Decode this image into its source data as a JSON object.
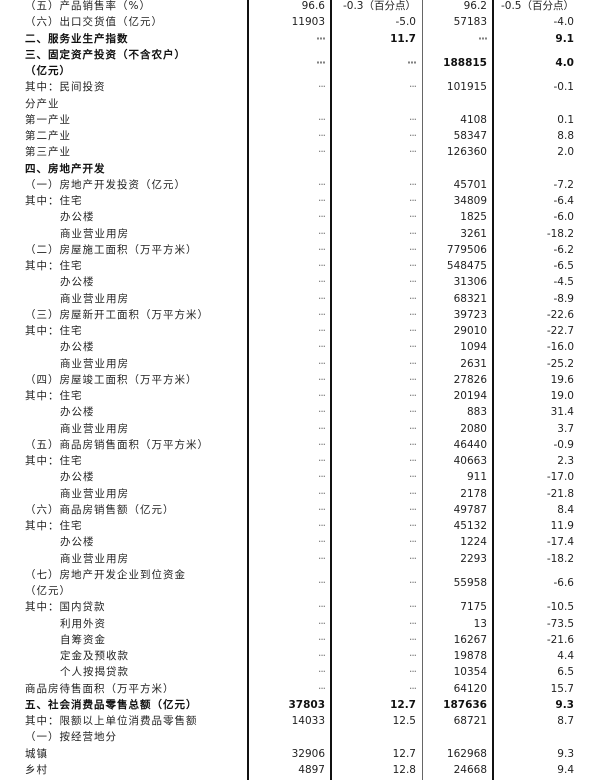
{
  "placeholder_dots": "···",
  "rows": [
    {
      "label": "（五）产品销售率（%）",
      "c1": "96.6",
      "c2": "-0.3（百分点）",
      "c3": "96.2",
      "c4": "-0.5（百分点）"
    },
    {
      "label": "（六）出口交货值（亿元）",
      "c1": "11903",
      "c2": "-5.0",
      "c3": "57183",
      "c4": "-4.0"
    },
    {
      "label": "二、服务业生产指数",
      "c1": "···",
      "c2": "11.7",
      "c3": "···",
      "c4": "9.1",
      "bold": true
    },
    {
      "label": "三、固定资产投资（不含农户）",
      "label2": "（亿元）",
      "c1": "···",
      "c2": "···",
      "c3": "188815",
      "c4": "4.0",
      "bold": true
    },
    {
      "label": "其中：民间投资",
      "c1": "···",
      "c2": "···",
      "c3": "101915",
      "c4": "-0.1"
    },
    {
      "label": "分产业",
      "c1": "",
      "c2": "",
      "c3": "",
      "c4": ""
    },
    {
      "label": "第一产业",
      "c1": "···",
      "c2": "···",
      "c3": "4108",
      "c4": "0.1"
    },
    {
      "label": "第二产业",
      "c1": "···",
      "c2": "···",
      "c3": "58347",
      "c4": "8.8"
    },
    {
      "label": "第三产业",
      "c1": "···",
      "c2": "···",
      "c3": "126360",
      "c4": "2.0"
    },
    {
      "label": "四、房地产开发",
      "c1": "",
      "c2": "",
      "c3": "",
      "c4": "",
      "bold": true
    },
    {
      "label": "（一）房地产开发投资（亿元）",
      "c1": "···",
      "c2": "···",
      "c3": "45701",
      "c4": "-7.2"
    },
    {
      "label": "其中：住宅",
      "c1": "···",
      "c2": "···",
      "c3": "34809",
      "c4": "-6.4"
    },
    {
      "label": "办公楼",
      "indent": true,
      "c1": "···",
      "c2": "···",
      "c3": "1825",
      "c4": "-6.0"
    },
    {
      "label": "商业营业用房",
      "indent": true,
      "c1": "···",
      "c2": "···",
      "c3": "3261",
      "c4": "-18.2"
    },
    {
      "label": "（二）房屋施工面积（万平方米）",
      "c1": "···",
      "c2": "···",
      "c3": "779506",
      "c4": "-6.2"
    },
    {
      "label": "其中：住宅",
      "c1": "···",
      "c2": "···",
      "c3": "548475",
      "c4": "-6.5"
    },
    {
      "label": "办公楼",
      "indent": true,
      "c1": "···",
      "c2": "···",
      "c3": "31306",
      "c4": "-4.5"
    },
    {
      "label": "商业营业用房",
      "indent": true,
      "c1": "···",
      "c2": "···",
      "c3": "68321",
      "c4": "-8.9"
    },
    {
      "label": "（三）房屋新开工面积（万平方米）",
      "c1": "···",
      "c2": "···",
      "c3": "39723",
      "c4": "-22.6"
    },
    {
      "label": "其中：住宅",
      "c1": "···",
      "c2": "···",
      "c3": "29010",
      "c4": "-22.7"
    },
    {
      "label": "办公楼",
      "indent": true,
      "c1": "···",
      "c2": "···",
      "c3": "1094",
      "c4": "-16.0"
    },
    {
      "label": "商业营业用房",
      "indent": true,
      "c1": "···",
      "c2": "···",
      "c3": "2631",
      "c4": "-25.2"
    },
    {
      "label": "（四）房屋竣工面积（万平方米）",
      "c1": "···",
      "c2": "···",
      "c3": "27826",
      "c4": "19.6"
    },
    {
      "label": "其中：住宅",
      "c1": "···",
      "c2": "···",
      "c3": "20194",
      "c4": "19.0"
    },
    {
      "label": "办公楼",
      "indent": true,
      "c1": "···",
      "c2": "···",
      "c3": "883",
      "c4": "31.4"
    },
    {
      "label": "商业营业用房",
      "indent": true,
      "c1": "···",
      "c2": "···",
      "c3": "2080",
      "c4": "3.7"
    },
    {
      "label": "（五）商品房销售面积（万平方米）",
      "c1": "···",
      "c2": "···",
      "c3": "46440",
      "c4": "-0.9"
    },
    {
      "label": "其中：住宅",
      "c1": "···",
      "c2": "···",
      "c3": "40663",
      "c4": "2.3"
    },
    {
      "label": "办公楼",
      "indent": true,
      "c1": "···",
      "c2": "···",
      "c3": "911",
      "c4": "-17.0"
    },
    {
      "label": "商业营业用房",
      "indent": true,
      "c1": "···",
      "c2": "···",
      "c3": "2178",
      "c4": "-21.8"
    },
    {
      "label": "（六）商品房销售额（亿元）",
      "c1": "···",
      "c2": "···",
      "c3": "49787",
      "c4": "8.4"
    },
    {
      "label": "其中：住宅",
      "c1": "···",
      "c2": "···",
      "c3": "45132",
      "c4": "11.9"
    },
    {
      "label": "办公楼",
      "indent": true,
      "c1": "···",
      "c2": "···",
      "c3": "1224",
      "c4": "-17.4"
    },
    {
      "label": "商业营业用房",
      "indent": true,
      "c1": "···",
      "c2": "···",
      "c3": "2293",
      "c4": "-18.2"
    },
    {
      "label": "（七）房地产开发企业到位资金",
      "label2": "（亿元）",
      "c1": "···",
      "c2": "···",
      "c3": "55958",
      "c4": "-6.6"
    },
    {
      "label": "其中：国内贷款",
      "c1": "···",
      "c2": "···",
      "c3": "7175",
      "c4": "-10.5"
    },
    {
      "label": "利用外资",
      "indent": true,
      "c1": "···",
      "c2": "···",
      "c3": "13",
      "c4": "-73.5"
    },
    {
      "label": "自筹资金",
      "indent": true,
      "c1": "···",
      "c2": "···",
      "c3": "16267",
      "c4": "-21.6"
    },
    {
      "label": "定金及预收款",
      "indent": true,
      "c1": "···",
      "c2": "···",
      "c3": "19878",
      "c4": "4.4"
    },
    {
      "label": "个人按揭贷款",
      "indent": true,
      "c1": "···",
      "c2": "···",
      "c3": "10354",
      "c4": "6.5"
    },
    {
      "label": "商品房待售面积（万平方米）",
      "c1": "···",
      "c2": "···",
      "c3": "64120",
      "c4": "15.7"
    },
    {
      "label": "五、社会消费品零售总额（亿元）",
      "c1": "37803",
      "c2": "12.7",
      "c3": "187636",
      "c4": "9.3",
      "bold": true
    },
    {
      "label": "其中：限额以上单位消费品零售额",
      "c1": "14033",
      "c2": "12.5",
      "c3": "68721",
      "c4": "8.7"
    },
    {
      "label": "（一）按经营地分",
      "c1": "",
      "c2": "",
      "c3": "",
      "c4": ""
    },
    {
      "label": "城镇",
      "c1": "32906",
      "c2": "12.7",
      "c3": "162968",
      "c4": "9.3"
    },
    {
      "label": "乡村",
      "c1": "4897",
      "c2": "12.8",
      "c3": "24668",
      "c4": "9.4"
    }
  ]
}
